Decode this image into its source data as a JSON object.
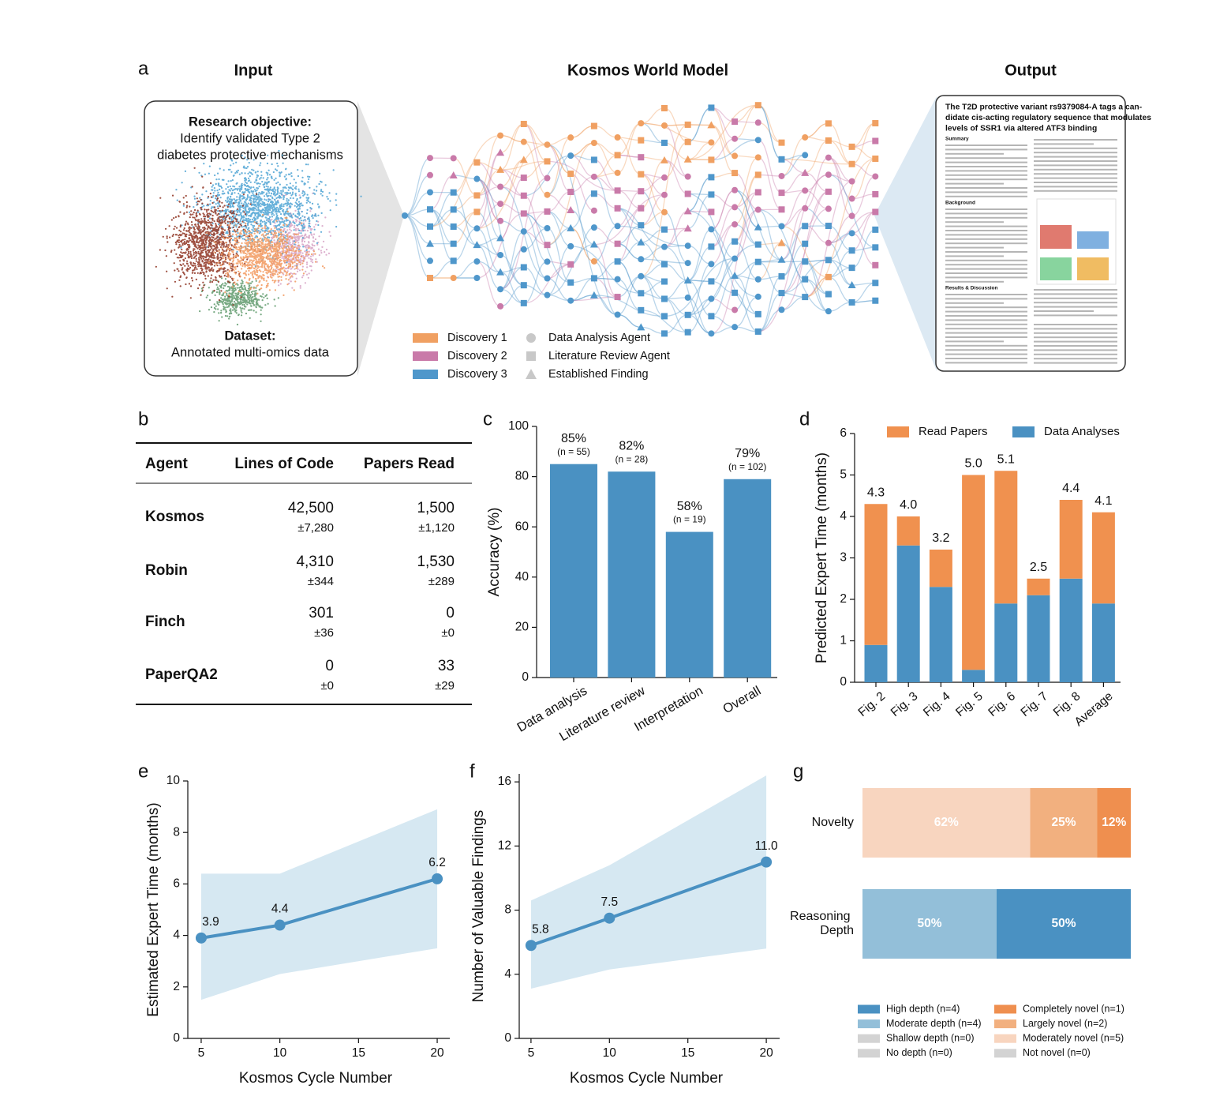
{
  "panel_a": {
    "label": "a",
    "input_title": "Input",
    "model_title": "Kosmos World Model",
    "output_title": "Output",
    "objective_heading": "Research objective:",
    "objective_lines": [
      "Identify validated Type 2",
      "diabetes protective mechanisms"
    ],
    "dataset_heading": "Dataset:",
    "dataset_text": "Annotated multi-omics data",
    "legend": {
      "discoveries": [
        {
          "name": "Discovery 1",
          "color": "#f0a062"
        },
        {
          "name": "Discovery 2",
          "color": "#c97aa9"
        },
        {
          "name": "Discovery 3",
          "color": "#4f97cb"
        }
      ],
      "node_types": [
        "Data Analysis Agent",
        "Literature Review Agent",
        "Established Finding"
      ]
    },
    "output_doc": {
      "title_lines": [
        "The T2D protective variant rs9379084-A tags a can-",
        "didate cis-acting regulatory sequence that modulates",
        "levels of SSR1 via altered ATF3 binding"
      ],
      "sections": [
        "Summary",
        "Background",
        "Results & Discussion"
      ]
    }
  },
  "panel_b": {
    "label": "b",
    "table": {
      "header": [
        "Agent",
        "Lines of Code",
        "Papers Read"
      ],
      "rows": [
        [
          "Kosmos",
          "42,500",
          "±7,280",
          "1,500",
          "±1,120"
        ],
        [
          "Robin",
          "4,310",
          "±344",
          "1,530",
          "±289"
        ],
        [
          "Finch",
          "301",
          "±36",
          "0",
          "±0"
        ],
        [
          "PaperQA2",
          "0",
          "±0",
          "33",
          "±29"
        ]
      ]
    }
  },
  "chart_data": [
    {
      "panel_label": "c",
      "type": "bar",
      "categories": [
        "Data analysis",
        "Literature review",
        "Interpretation",
        "Overall"
      ],
      "values": [
        85,
        82,
        58,
        79
      ],
      "value_labels": [
        "85%",
        "82%",
        "58%",
        "79%"
      ],
      "sample_sizes": [
        "(n = 55)",
        "(n = 28)",
        "(n = 19)",
        "(n = 102)"
      ],
      "color": "#4a91c2",
      "ylabel": "Accuracy (%)",
      "ylim": [
        0,
        100
      ],
      "yticks": [
        0,
        20,
        40,
        60,
        80,
        100
      ]
    },
    {
      "panel_label": "d",
      "type": "stacked_bar",
      "categories": [
        "Fig. 2",
        "Fig. 3",
        "Fig. 4",
        "Fig. 5",
        "Fig. 6",
        "Fig. 7",
        "Fig. 8",
        "Average"
      ],
      "series": [
        {
          "name": "Read Papers",
          "color": "#f0914f",
          "values": [
            3.4,
            0.7,
            0.9,
            4.7,
            3.2,
            0.4,
            1.9,
            2.2
          ]
        },
        {
          "name": "Data Analyses",
          "color": "#4a91c2",
          "values": [
            0.9,
            3.3,
            2.3,
            0.3,
            1.9,
            2.1,
            2.5,
            1.9
          ]
        }
      ],
      "total_labels": [
        "4.3",
        "4.0",
        "3.2",
        "5.0",
        "5.1",
        "2.5",
        "4.4",
        "4.1"
      ],
      "ylabel": "Predicted Expert Time (months)",
      "ylim": [
        0,
        6
      ],
      "yticks": [
        0,
        1,
        2,
        3,
        4,
        5,
        6
      ]
    },
    {
      "panel_label": "e",
      "type": "line",
      "x": [
        5,
        10,
        20
      ],
      "values": [
        3.9,
        4.4,
        6.2
      ],
      "band_lower": [
        1.5,
        2.5,
        3.5
      ],
      "band_upper": [
        6.4,
        6.4,
        8.9
      ],
      "color": "#4a91c2",
      "band_color": "#d6e8f2",
      "xlabel": "Kosmos Cycle Number",
      "ylabel": "Estimated Expert Time (months)",
      "xlim": [
        4.15,
        20.8
      ],
      "xticks": [
        5,
        10,
        15,
        20
      ],
      "ylim": [
        0,
        10
      ],
      "yticks": [
        0,
        2,
        4,
        6,
        8,
        10
      ]
    },
    {
      "panel_label": "f",
      "type": "line",
      "x": [
        5,
        10,
        20
      ],
      "values": [
        5.8,
        7.5,
        11
      ],
      "value_labels": [
        "5.8",
        "7.5",
        "11.0"
      ],
      "band_lower": [
        3.1,
        4.3,
        5.6
      ],
      "band_upper": [
        8.6,
        10.8,
        16.4
      ],
      "color": "#4a91c2",
      "band_color": "#d6e8f2",
      "xlabel": "Kosmos Cycle Number",
      "ylabel": "Number of Valuable Findings",
      "xlim": [
        4.25,
        20.85
      ],
      "xticks": [
        5,
        10,
        15,
        20
      ],
      "ylim": [
        0,
        16.5
      ],
      "yticks": [
        0,
        4,
        8,
        12,
        16
      ]
    },
    {
      "panel_label": "g",
      "type": "stacked_hbar",
      "categories": [
        "Novelty",
        "Reasoning Depth"
      ],
      "xlim": [
        0,
        100
      ],
      "series": [
        {
          "name": "No depth (n=0)",
          "color": "#d3d3d3",
          "values": [
            null,
            0
          ],
          "value_labels": [
            null,
            null
          ]
        },
        {
          "name": "Shallow depth (n=0)",
          "color": "#d3d3d3",
          "values": [
            null,
            0
          ],
          "value_labels": [
            null,
            null
          ]
        },
        {
          "name": "Moderate depth (n=4)",
          "color": "#93bfd9",
          "values": [
            null,
            50
          ],
          "value_labels": [
            null,
            "50%"
          ]
        },
        {
          "name": "High depth (n=4)",
          "color": "#4a91c2",
          "values": [
            null,
            50
          ],
          "value_labels": [
            null,
            "50%"
          ]
        },
        {
          "name": "Not novel (n=0)",
          "color": "#d3d3d3",
          "values": [
            0,
            null
          ],
          "value_labels": [
            null,
            null
          ]
        },
        {
          "name": "Moderately novel (n=5)",
          "color": "#f8d5bf",
          "values": [
            62.5,
            null
          ],
          "value_labels": [
            "62%",
            null
          ]
        },
        {
          "name": "Largely novel (n=2)",
          "color": "#f2b07f",
          "values": [
            25,
            null
          ],
          "value_labels": [
            "25%",
            null
          ]
        },
        {
          "name": "Completely novel (n=1)",
          "color": "#ef8f4f",
          "values": [
            12.5,
            null
          ],
          "value_labels": [
            "12%",
            null
          ]
        }
      ]
    }
  ]
}
